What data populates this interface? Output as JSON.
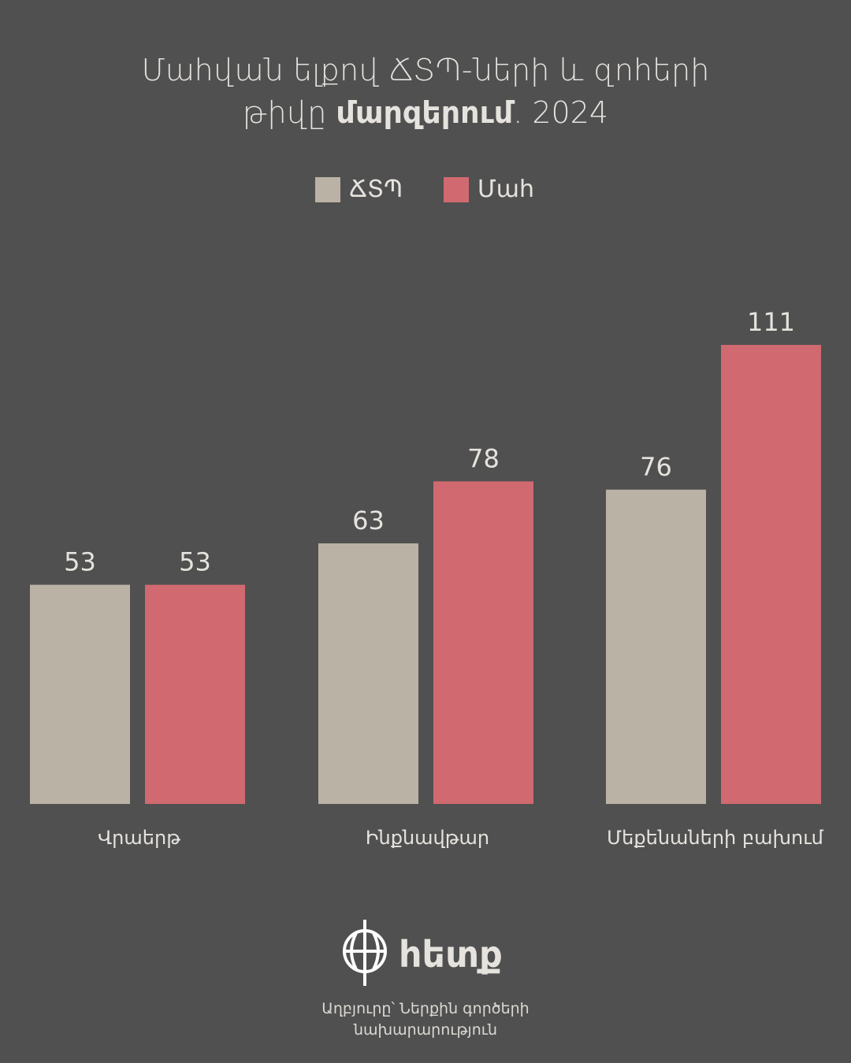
{
  "chart_data": {
    "type": "bar",
    "title_line1": "Մահվան ելքով ՃՏՊ-ների և զոհերի",
    "title_line2_start": "թիվը",
    "title_line2_bold": "մարզերում",
    "title_line2_end": ". 2024",
    "categories": [
      "Վրաերթ",
      "Ինքնավթար",
      "Մեքենաների բախում"
    ],
    "series": [
      {
        "name": "ՃՏՊ",
        "color": "#bab2a5",
        "values": [
          53,
          63,
          76
        ]
      },
      {
        "name": "Մահ",
        "color": "#d06a70",
        "values": [
          53,
          78,
          111
        ]
      }
    ],
    "grid": false
  },
  "footer": {
    "logo": "հետք",
    "source_lines": [
      "Աղբյուրը՝ Ներքին գործերի",
      "նախարարություն"
    ]
  }
}
